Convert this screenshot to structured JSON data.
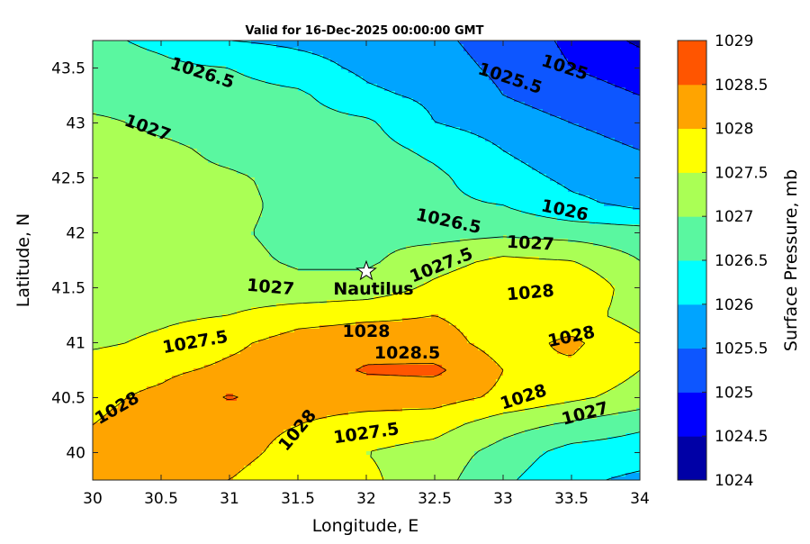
{
  "chart_data": {
    "type": "contourf",
    "title": "Valid for 16-Dec-2025 00:00:00 GMT",
    "xlabel": "Longitude, E",
    "ylabel": "Latitude, N",
    "xlim": [
      30,
      34
    ],
    "ylim": [
      39.75,
      43.75
    ],
    "xticks": [
      "30",
      "30.5",
      "31",
      "31.5",
      "32",
      "32.5",
      "33",
      "33.5",
      "34"
    ],
    "yticks": [
      "40",
      "40.5",
      "41",
      "41.5",
      "42",
      "42.5",
      "43",
      "43.5"
    ],
    "colorbar": {
      "label": "Surface Pressure, mb",
      "ticks": [
        "1024",
        "1024.5",
        "1025",
        "1025.5",
        "1026",
        "1026.5",
        "1027",
        "1027.5",
        "1028",
        "1028.5",
        "1029"
      ],
      "levels": [
        1024,
        1024.5,
        1025,
        1025.5,
        1026,
        1026.5,
        1027,
        1027.5,
        1028,
        1028.5,
        1029
      ],
      "colors": [
        "#0000a6",
        "#0000ff",
        "#0d56ff",
        "#00a4ff",
        "#00ffff",
        "#5af7a0",
        "#aaff55",
        "#ffff00",
        "#ffa400",
        "#ff5500",
        "#ff0000"
      ]
    },
    "contour_labels": [
      {
        "text": "1026.5",
        "lon": 30.8,
        "lat": 43.45
      },
      {
        "text": "1025.5",
        "lon": 33.05,
        "lat": 43.4
      },
      {
        "text": "1025",
        "lon": 33.45,
        "lat": 43.5
      },
      {
        "text": "1027",
        "lon": 30.4,
        "lat": 42.95
      },
      {
        "text": "1026.5",
        "lon": 32.6,
        "lat": 42.1
      },
      {
        "text": "1026",
        "lon": 33.45,
        "lat": 42.2
      },
      {
        "text": "1027",
        "lon": 33.2,
        "lat": 41.9
      },
      {
        "text": "1027.5",
        "lon": 32.55,
        "lat": 41.7
      },
      {
        "text": "1027",
        "lon": 31.3,
        "lat": 41.5
      },
      {
        "text": "1028",
        "lon": 33.2,
        "lat": 41.45
      },
      {
        "text": "1028",
        "lon": 32.0,
        "lat": 41.1
      },
      {
        "text": "1028.5",
        "lon": 32.3,
        "lat": 40.9
      },
      {
        "text": "1028",
        "lon": 33.5,
        "lat": 41.05
      },
      {
        "text": "1027.5",
        "lon": 30.75,
        "lat": 41.0
      },
      {
        "text": "1028",
        "lon": 30.18,
        "lat": 40.4
      },
      {
        "text": "1028",
        "lon": 31.5,
        "lat": 40.2
      },
      {
        "text": "1027.5",
        "lon": 32.0,
        "lat": 40.17
      },
      {
        "text": "1028",
        "lon": 33.15,
        "lat": 40.5
      },
      {
        "text": "1027",
        "lon": 33.6,
        "lat": 40.35
      }
    ],
    "marker": {
      "label": "Nautilus",
      "lon": 32.0,
      "lat": 41.65
    },
    "field_grid": {
      "lon": [
        30,
        30.5,
        31,
        31.5,
        32,
        32.5,
        33,
        33.5,
        34
      ],
      "lat": [
        43.75,
        43.5,
        43.25,
        43,
        42.75,
        42.5,
        42.25,
        42,
        41.75,
        41.5,
        41.25,
        41,
        40.75,
        40.5,
        40.25,
        40,
        39.75
      ],
      "values": [
        [
          1026.6,
          1026.4,
          1026.0,
          1025.9,
          1025.8,
          1025.6,
          1025.3,
          1024.9,
          1024.4
        ],
        [
          1026.7,
          1026.6,
          1026.5,
          1026.2,
          1025.9,
          1025.7,
          1025.4,
          1025.0,
          1024.8
        ],
        [
          1026.8,
          1026.8,
          1026.7,
          1026.6,
          1026.1,
          1025.9,
          1025.5,
          1025.2,
          1025.0
        ],
        [
          1027.1,
          1026.9,
          1026.8,
          1026.7,
          1026.6,
          1026.0,
          1025.8,
          1025.5,
          1025.3
        ],
        [
          1027.2,
          1027.1,
          1026.9,
          1026.8,
          1026.7,
          1026.4,
          1026.0,
          1025.7,
          1025.5
        ],
        [
          1027.2,
          1027.1,
          1027.05,
          1026.9,
          1026.8,
          1026.6,
          1026.2,
          1025.9,
          1025.8
        ],
        [
          1027.2,
          1027.1,
          1027.1,
          1026.9,
          1026.8,
          1026.6,
          1026.5,
          1026.1,
          1025.9
        ],
        [
          1027.2,
          1027.1,
          1027.05,
          1026.9,
          1026.9,
          1026.8,
          1026.9,
          1026.8,
          1026.7
        ],
        [
          1027.2,
          1027.1,
          1027.1,
          1026.95,
          1026.9,
          1027.3,
          1027.6,
          1027.5,
          1027.0
        ],
        [
          1027.2,
          1027.2,
          1027.2,
          1027.1,
          1027.2,
          1027.6,
          1027.9,
          1028.0,
          1027.2
        ],
        [
          1027.3,
          1027.4,
          1027.5,
          1027.8,
          1027.9,
          1028.0,
          1027.8,
          1027.7,
          1027.3
        ],
        [
          1027.4,
          1027.6,
          1027.9,
          1028.2,
          1028.3,
          1028.2,
          1027.8,
          1028.1,
          1027.6
        ],
        [
          1027.8,
          1027.9,
          1028.1,
          1028.2,
          1028.55,
          1028.6,
          1028.0,
          1027.9,
          1027.5
        ],
        [
          1027.9,
          1028.1,
          1028.55,
          1028.2,
          1028.2,
          1028.2,
          1027.9,
          1027.6,
          1027.3
        ],
        [
          1028.0,
          1028.2,
          1028.1,
          1028.0,
          1027.8,
          1027.7,
          1027.2,
          1026.9,
          1026.6
        ],
        [
          1028.1,
          1028.1,
          1028.1,
          1027.9,
          1027.5,
          1027.3,
          1026.8,
          1026.3,
          1026.2
        ],
        [
          1028.0,
          1028.0,
          1028.0,
          1027.8,
          1027.6,
          1027.2,
          1026.6,
          1026.1,
          1025.9
        ]
      ]
    }
  }
}
